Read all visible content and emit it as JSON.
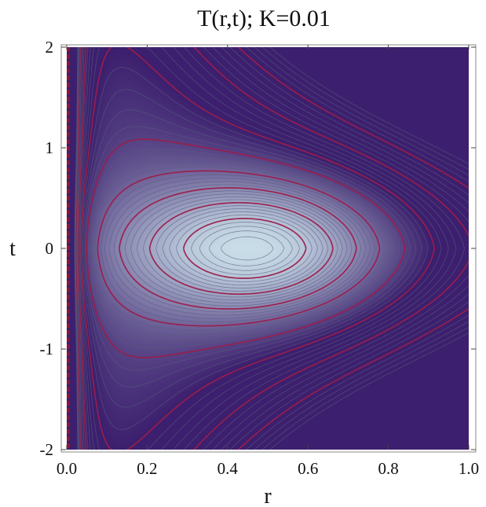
{
  "chart_data": {
    "type": "heatmap",
    "title": "T(r,t); K=0.01",
    "xlabel": "r",
    "ylabel": "t",
    "xlim": [
      0.0,
      1.0
    ],
    "ylim": [
      -2.0,
      2.0
    ],
    "x_ticks": [
      {
        "value": 0.0,
        "label": "0.0"
      },
      {
        "value": 0.2,
        "label": "0.2"
      },
      {
        "value": 0.4,
        "label": "0.4"
      },
      {
        "value": 0.6,
        "label": "0.6"
      },
      {
        "value": 0.8,
        "label": "0.8"
      },
      {
        "value": 1.0,
        "label": "1.0"
      }
    ],
    "y_ticks": [
      {
        "value": -2,
        "label": "-2"
      },
      {
        "value": -1,
        "label": "-1"
      },
      {
        "value": 0,
        "label": "0"
      },
      {
        "value": 1,
        "label": "1"
      },
      {
        "value": 2,
        "label": "2"
      }
    ],
    "grid": false,
    "colormap": {
      "low": "#c9dde8",
      "high": "#3c1f6e",
      "accent_line": "#9a1f4a",
      "thin_line": "#58607c"
    },
    "features": {
      "maximum_at": {
        "r": 0.46,
        "t": 0.0
      },
      "highlighted_closed_contour_extent": {
        "r": [
          0.17,
          0.75
        ],
        "t": [
          -0.63,
          0.63
        ]
      },
      "singular_line_at_r": 0.0
    }
  }
}
